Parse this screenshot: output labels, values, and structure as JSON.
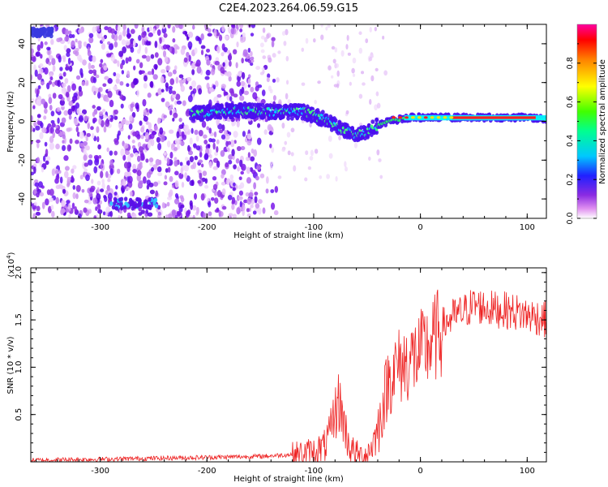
{
  "title": "C2E4.2023.264.06.59.G15",
  "chart_data": [
    {
      "type": "heatmap",
      "xlabel": "Height of straight line (km)",
      "ylabel": "Frequency (Hz)",
      "xlim": [
        -365,
        118
      ],
      "ylim": [
        -50,
        50
      ],
      "xticks": [
        -300,
        -200,
        -100,
        0,
        100
      ],
      "yticks": [
        -40,
        -20,
        0,
        20,
        40
      ],
      "colorbar": {
        "label": "Normalized spectral amplitude",
        "range": [
          0.0,
          1.0
        ],
        "ticks": [
          0.0,
          0.2,
          0.4,
          0.6,
          0.8
        ]
      },
      "ridge": {
        "x": [
          -210,
          -190,
          -170,
          -150,
          -130,
          -110,
          -100,
          -90,
          -80,
          -70,
          -60,
          -50,
          -40,
          -30,
          -20,
          -10,
          0,
          20,
          40,
          60,
          80,
          100,
          118
        ],
        "frequency": [
          4,
          5,
          6,
          5,
          5,
          5,
          3,
          1,
          -2,
          -5,
          -7,
          -5,
          -2,
          0,
          1,
          2,
          2,
          2,
          2,
          2,
          2,
          2,
          1
        ]
      },
      "grid": false
    },
    {
      "type": "line",
      "xlabel": "Height of straight line (km)",
      "ylabel": "SNR (10 * v/v)",
      "yunit": "(x10^4)",
      "xlim": [
        -365,
        118
      ],
      "ylim": [
        0,
        2.05
      ],
      "xticks": [
        -300,
        -200,
        -100,
        0,
        100
      ],
      "yticks": [
        0.5,
        1.0,
        1.5,
        2.0
      ],
      "series": [
        {
          "color": "#ee2222",
          "x": [
            -365,
            -300,
            -250,
            -200,
            -150,
            -120,
            -100,
            -90,
            -85,
            -80,
            -76,
            -72,
            -68,
            -65,
            -60,
            -55,
            -50,
            -45,
            -40,
            -35,
            -30,
            -25,
            -20,
            -15,
            -10,
            -5,
            0,
            10,
            20,
            30,
            40,
            50,
            60,
            70,
            80,
            90,
            100,
            110,
            118
          ],
          "y": [
            0.02,
            0.03,
            0.04,
            0.05,
            0.06,
            0.08,
            0.12,
            0.18,
            0.3,
            0.55,
            0.68,
            0.45,
            0.25,
            0.15,
            0.1,
            0.07,
            0.1,
            0.2,
            0.35,
            0.65,
            0.9,
            1.0,
            1.05,
            1.08,
            1.12,
            1.15,
            1.2,
            1.3,
            1.45,
            1.55,
            1.6,
            1.68,
            1.65,
            1.63,
            1.62,
            1.6,
            1.57,
            1.55,
            1.52
          ]
        }
      ],
      "grid": false
    }
  ]
}
